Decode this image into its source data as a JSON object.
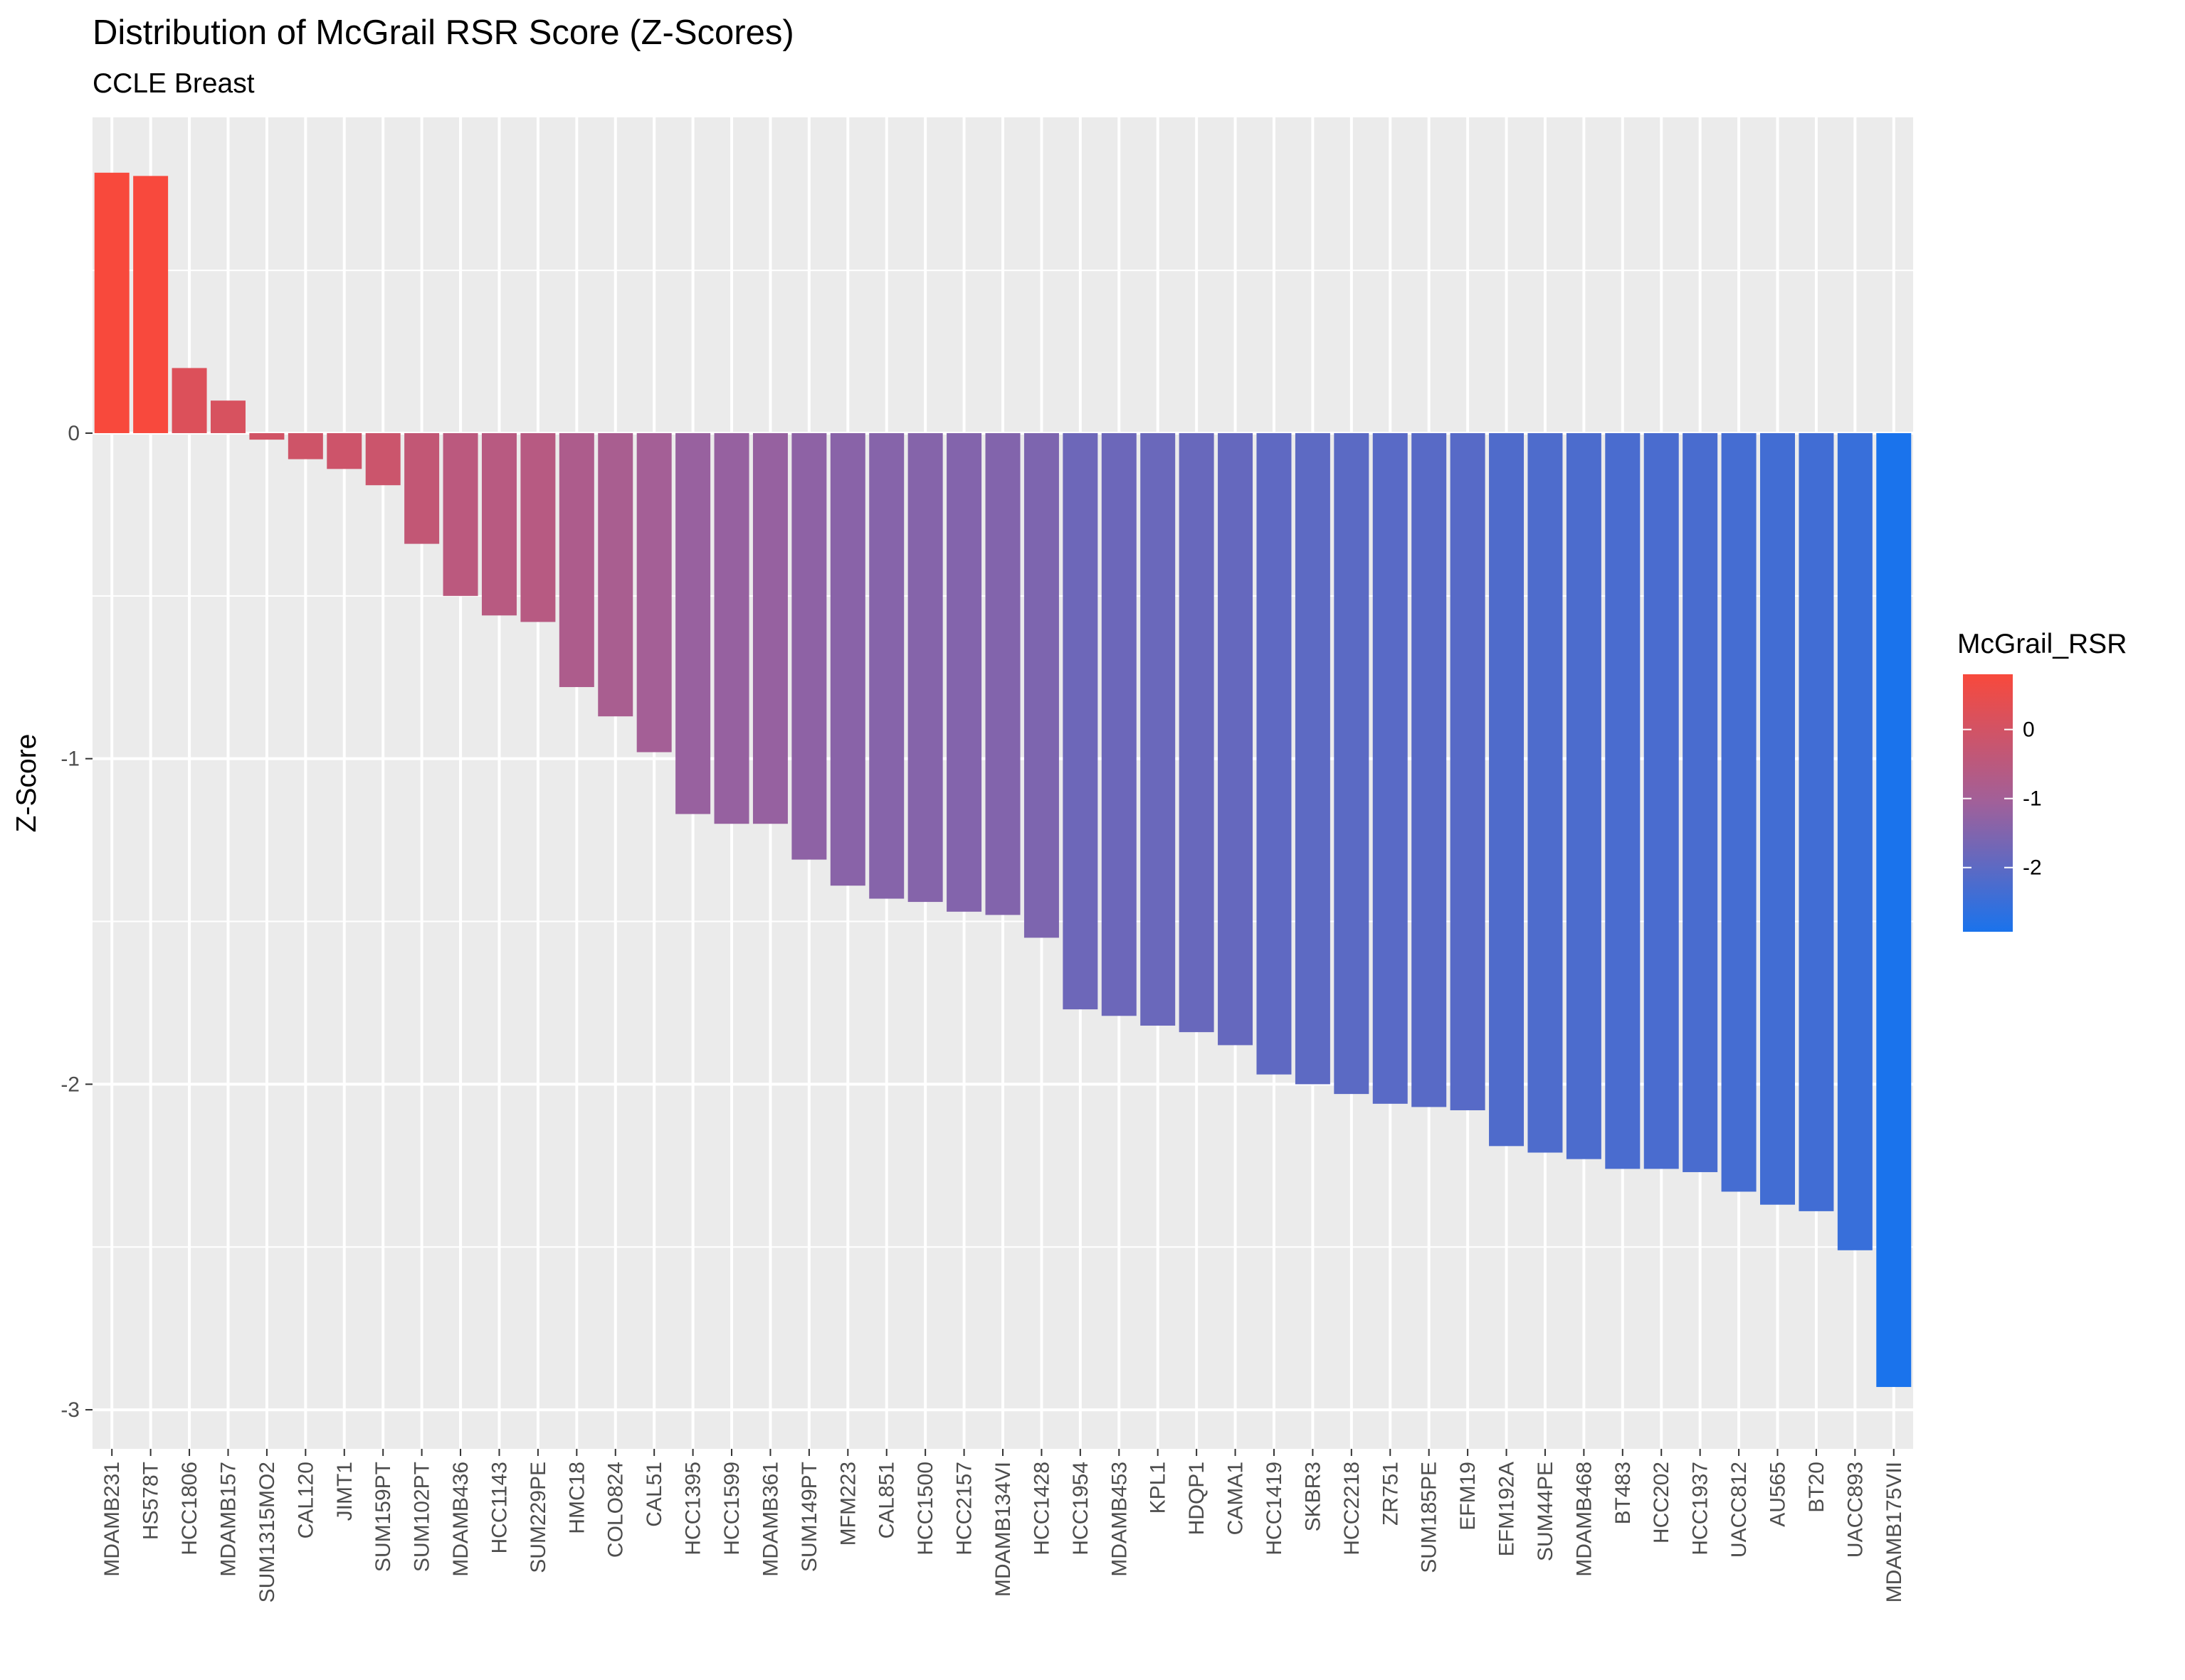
{
  "chart_data": {
    "type": "bar",
    "title": "Distribution of McGrail RSR Score (Z-Scores)",
    "subtitle": "CCLE Breast",
    "xlabel": "",
    "ylabel": "Z-Score",
    "ylim": [
      -3.12,
      0.97
    ],
    "yticks": [
      0,
      -1,
      -2,
      -3
    ],
    "grid": true,
    "legend": {
      "title": "McGrail_RSR",
      "position": "right",
      "ticks": [
        0,
        -1,
        -2
      ],
      "range": [
        -2.93,
        0.8
      ],
      "high_color": "#F8493C",
      "mid_color": "#A0609A",
      "low_color": "#1A73EC"
    },
    "categories": [
      "MDAMB231",
      "HS578T",
      "HCC1806",
      "MDAMB157",
      "SUM1315MO2",
      "CAL120",
      "JIMT1",
      "SUM159PT",
      "SUM102PT",
      "MDAMB436",
      "HCC1143",
      "SUM229PE",
      "HMC18",
      "COLO824",
      "CAL51",
      "HCC1395",
      "HCC1599",
      "MDAMB361",
      "SUM149PT",
      "MFM223",
      "CAL851",
      "HCC1500",
      "HCC2157",
      "MDAMB134VI",
      "HCC1428",
      "HCC1954",
      "MDAMB453",
      "KPL1",
      "HDQP1",
      "CAMA1",
      "HCC1419",
      "SKBR3",
      "HCC2218",
      "ZR751",
      "SUM185PE",
      "EFM19",
      "EFM192A",
      "SUM44PE",
      "MDAMB468",
      "BT483",
      "HCC202",
      "HCC1937",
      "UACC812",
      "AU565",
      "BT20",
      "UACC893",
      "MDAMB175VII"
    ],
    "values": [
      0.8,
      0.79,
      0.2,
      0.1,
      -0.02,
      -0.08,
      -0.11,
      -0.16,
      -0.34,
      -0.5,
      -0.56,
      -0.58,
      -0.78,
      -0.87,
      -0.98,
      -1.17,
      -1.2,
      -1.2,
      -1.31,
      -1.39,
      -1.43,
      -1.44,
      -1.47,
      -1.48,
      -1.55,
      -1.77,
      -1.79,
      -1.82,
      -1.84,
      -1.88,
      -1.97,
      -2.0,
      -2.03,
      -2.06,
      -2.07,
      -2.08,
      -2.19,
      -2.21,
      -2.23,
      -2.26,
      -2.26,
      -2.27,
      -2.33,
      -2.37,
      -2.39,
      -2.51,
      -2.93
    ]
  }
}
